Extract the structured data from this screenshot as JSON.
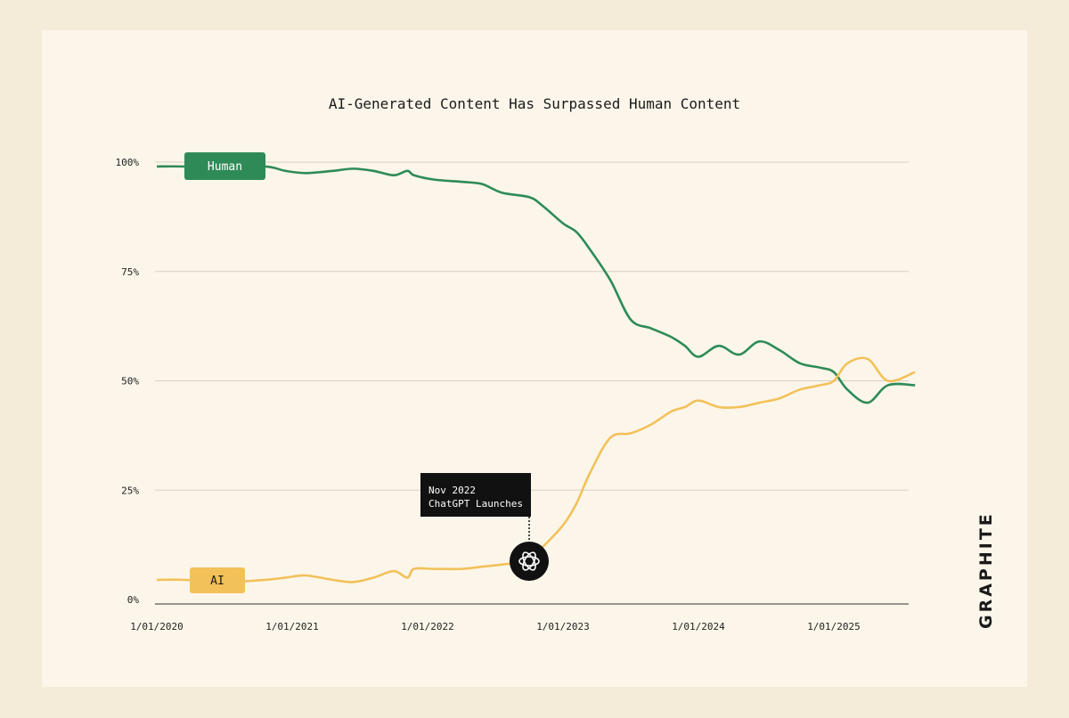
{
  "chart_data": {
    "type": "line",
    "title": "AI-Generated Content Has Surpassed Human Content",
    "xlabel": "",
    "ylabel": "",
    "ylim": [
      0,
      100
    ],
    "y_ticks": [
      "0%",
      "25%",
      "50%",
      "75%",
      "100%"
    ],
    "x_ticks": [
      "1/01/2020",
      "1/01/2021",
      "1/01/2022",
      "1/01/2023",
      "1/01/2024",
      "1/01/2025"
    ],
    "x_unit": "years since 2020",
    "series": [
      {
        "name": "Human",
        "color": "#2e8b57",
        "x": [
          0.0,
          0.2,
          0.5,
          0.8,
          0.95,
          1.1,
          1.3,
          1.45,
          1.6,
          1.75,
          1.85,
          1.9,
          2.05,
          2.25,
          2.4,
          2.55,
          2.75,
          2.85,
          3.0,
          3.1,
          3.2,
          3.35,
          3.5,
          3.65,
          3.8,
          3.9,
          4.0,
          4.15,
          4.3,
          4.45,
          4.6,
          4.75,
          4.9,
          5.0,
          5.1,
          5.25,
          5.4,
          5.6
        ],
        "values": [
          99,
          99,
          98.5,
          99,
          98,
          97.5,
          98,
          98.5,
          98,
          97,
          98,
          97,
          96,
          95.5,
          95,
          93,
          92,
          90,
          86,
          84,
          80,
          73,
          64,
          62,
          60,
          58,
          55.5,
          58,
          56,
          59,
          57,
          54,
          53,
          52,
          48,
          45,
          49,
          49
        ]
      },
      {
        "name": "AI",
        "color": "#f3c15a",
        "x": [
          0.0,
          0.2,
          0.5,
          0.8,
          0.95,
          1.1,
          1.3,
          1.45,
          1.6,
          1.75,
          1.85,
          1.9,
          2.05,
          2.25,
          2.4,
          2.55,
          2.75,
          2.85,
          3.0,
          3.1,
          3.2,
          3.35,
          3.5,
          3.65,
          3.8,
          3.9,
          4.0,
          4.15,
          4.3,
          4.45,
          4.6,
          4.75,
          4.9,
          5.0,
          5.1,
          5.25,
          5.4,
          5.6
        ],
        "values": [
          4.5,
          4.5,
          4,
          4.5,
          5,
          5.5,
          4.5,
          4,
          5,
          6.5,
          5,
          7,
          7,
          7,
          7.5,
          8,
          9,
          12,
          17,
          22,
          29,
          37,
          38,
          40,
          43,
          44,
          45.5,
          44,
          44,
          45,
          46,
          48,
          49,
          50,
          54,
          55,
          50,
          52
        ]
      }
    ],
    "annotations": [
      {
        "x": 2.83,
        "series": "AI",
        "label_line1": "Nov 2022",
        "label_line2": "ChatGPT Launches",
        "marker": "chatgpt-logo"
      }
    ]
  },
  "brand": {
    "logo_text": "GRAPHITE"
  }
}
